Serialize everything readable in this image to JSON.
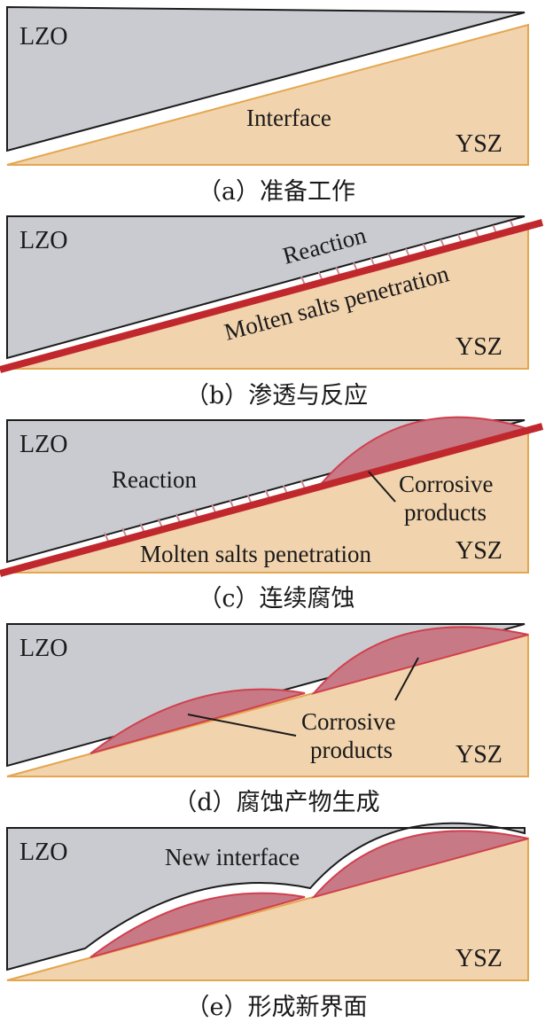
{
  "colors": {
    "lzo": "#c9cbd0",
    "ysz": "#f1d3ad",
    "ysz_edge": "#e4a64e",
    "outline": "#1b1b1b",
    "molten": "#c0282d",
    "corrosion_fill": "#c77a86",
    "corrosion_edge": "#d0404d",
    "reaction_hatch": "#c98a92"
  },
  "panels": [
    {
      "id": "a",
      "labels": {
        "lzo": "LZO",
        "ysz": "YSZ",
        "interface": "Interface"
      },
      "caption": "（a）准备工作"
    },
    {
      "id": "b",
      "labels": {
        "lzo": "LZO",
        "ysz": "YSZ",
        "reaction": "Reaction",
        "penetration": "Molten salts penetration"
      },
      "caption": "（b）渗透与反应"
    },
    {
      "id": "c",
      "labels": {
        "lzo": "LZO",
        "ysz": "YSZ",
        "reaction": "Reaction",
        "corrosive_1": "Corrosive",
        "corrosive_2": "products",
        "penetration": "Molten salts penetration"
      },
      "caption": "（c）连续腐蚀"
    },
    {
      "id": "d",
      "labels": {
        "lzo": "LZO",
        "ysz": "YSZ",
        "corrosive_1": "Corrosive",
        "corrosive_2": "products"
      },
      "caption": "（d）腐蚀产物生成"
    },
    {
      "id": "e",
      "labels": {
        "lzo": "LZO",
        "ysz": "YSZ",
        "new_interface": "New interface"
      },
      "caption": "（e）形成新界面"
    }
  ]
}
